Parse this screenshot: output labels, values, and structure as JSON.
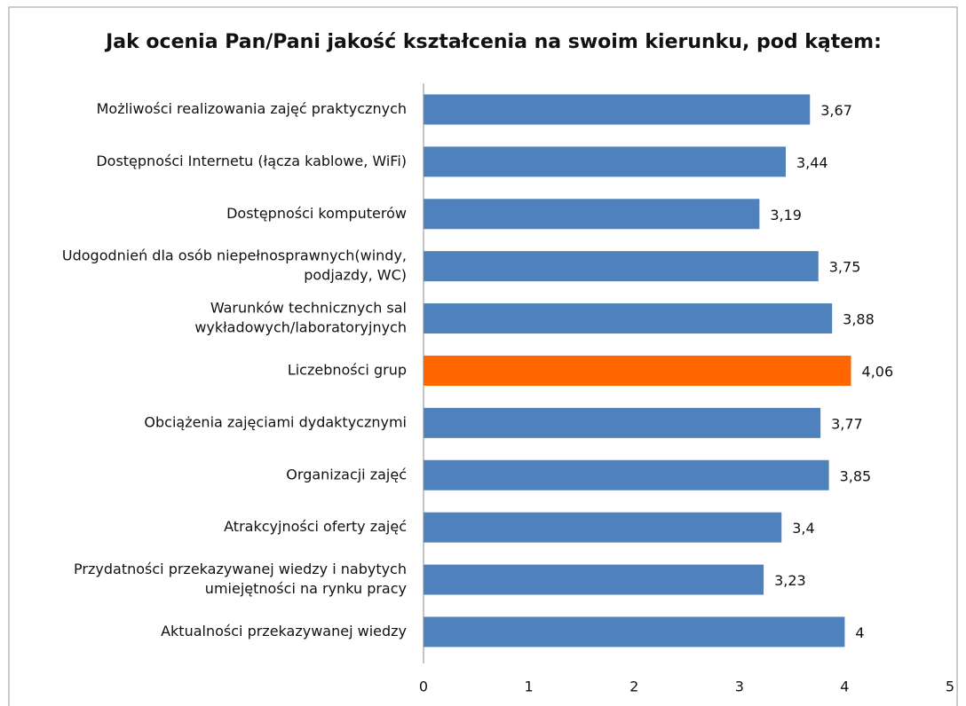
{
  "chart_data": {
    "type": "barh",
    "title": "Jak ocenia Pan/Pani jakość kształcenia na swoim kierunku, pod kątem:",
    "categories": [
      [
        "Możliwości realizowania zajęć praktycznych"
      ],
      [
        "Dostępności Internetu (łącza kablowe, WiFi)"
      ],
      [
        "Dostępności komputerów"
      ],
      [
        "Udogodnień dla osób niepełnosprawnych(windy,",
        "podjazdy, WC)"
      ],
      [
        "Warunków technicznych sal",
        "wykładowych/laboratoryjnych"
      ],
      [
        "Liczebności grup"
      ],
      [
        "Obciążenia zajęciami dydaktycznymi"
      ],
      [
        "Organizacji zajęć"
      ],
      [
        "Atrakcyjności oferty zajęć"
      ],
      [
        "Przydatności przekazywanej wiedzy i nabytych",
        "umiejętności na rynku pracy"
      ],
      [
        "Aktualności przekazywanej wiedzy"
      ]
    ],
    "values": [
      3.67,
      3.44,
      3.19,
      3.75,
      3.88,
      4.06,
      3.77,
      3.85,
      3.4,
      3.23,
      4
    ],
    "value_labels": [
      "3,67",
      "3,44",
      "3,19",
      "3,75",
      "3,88",
      "4,06",
      "3,77",
      "3,85",
      "3,4",
      "3,23",
      "4"
    ],
    "colors": [
      "#4f81bd",
      "#4f81bd",
      "#4f81bd",
      "#4f81bd",
      "#4f81bd",
      "#ff6600",
      "#4f81bd",
      "#4f81bd",
      "#4f81bd",
      "#4f81bd",
      "#4f81bd"
    ],
    "xlim": [
      0,
      5
    ],
    "xticks": [
      0,
      1,
      2,
      3,
      4,
      5
    ]
  }
}
